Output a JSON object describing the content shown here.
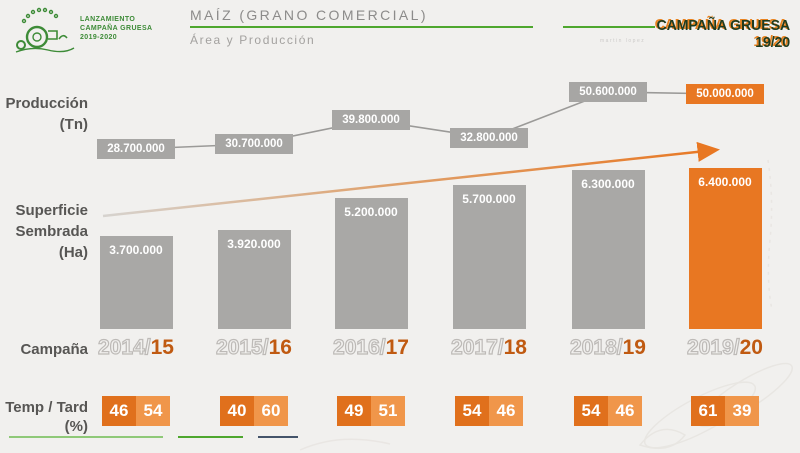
{
  "header": {
    "logo": {
      "line1": "LANZAMIENTO",
      "line2": "CAMPAÑA GRUESA",
      "line3": "2019-2020"
    },
    "title": "MAÍZ (GRANO COMERCIAL)",
    "subtitle": "Área y Producción",
    "watermark": "martin lopez",
    "badge": "CAMPAÑA GRUESA 19/20"
  },
  "labels": {
    "production1": "Producción",
    "production2": "(Tn)",
    "area1": "Superficie",
    "area2": "Sembrada",
    "area3": "(Ha)",
    "campaign": "Campaña",
    "temp1": "Temp / Tard",
    "temp2": "(%)"
  },
  "campaigns": [
    {
      "base": "2014/",
      "accent": "15"
    },
    {
      "base": "2015/",
      "accent": "16"
    },
    {
      "base": "2016/",
      "accent": "17"
    },
    {
      "base": "2017/",
      "accent": "18"
    },
    {
      "base": "2018/",
      "accent": "19"
    },
    {
      "base": "2019/",
      "accent": "20"
    }
  ],
  "chart_data": [
    {
      "type": "line",
      "name": "produccion_tn",
      "title": "Producción (Tn)",
      "categories": [
        "2014/15",
        "2015/16",
        "2016/17",
        "2017/18",
        "2018/19",
        "2019/20"
      ],
      "values": [
        28700000,
        30700000,
        39800000,
        32800000,
        50600000,
        50000000
      ],
      "labels": [
        "28.700.000",
        "30.700.000",
        "39.800.000",
        "32.800.000",
        "50.600.000",
        "50.000.000"
      ],
      "highlight_index": 5
    },
    {
      "type": "bar",
      "name": "superficie_sembrada_ha",
      "title": "Superficie Sembrada (Ha)",
      "categories": [
        "2014/15",
        "2015/16",
        "2016/17",
        "2017/18",
        "2018/19",
        "2019/20"
      ],
      "values": [
        3700000,
        3920000,
        5200000,
        5700000,
        6300000,
        6400000
      ],
      "labels": [
        "3.700.000",
        "3.920.000",
        "5.200.000",
        "5.700.000",
        "6.300.000",
        "6.400.000"
      ],
      "highlight_index": 5
    },
    {
      "type": "table",
      "name": "temp_tard_pct",
      "title": "Temp / Tard (%)",
      "categories": [
        "2014/15",
        "2015/16",
        "2016/17",
        "2017/18",
        "2018/19",
        "2019/20"
      ],
      "series": [
        {
          "name": "Temp",
          "values": [
            46,
            40,
            49,
            54,
            54,
            61
          ]
        },
        {
          "name": "Tard",
          "values": [
            54,
            60,
            51,
            46,
            46,
            39
          ]
        }
      ]
    }
  ],
  "colors": {
    "accent_orange": "#e87722",
    "temp_orange_dark": "#e0701c",
    "tard_orange_light": "#f0964a",
    "bar_gray": "#a9a8a6",
    "label_gray_bg": "#a7a6a4",
    "campaign_accent": "#c05a11",
    "green_line": "#4ea72e",
    "logo_green": "#3d8b37",
    "line_stroke": "#9b9a98"
  }
}
